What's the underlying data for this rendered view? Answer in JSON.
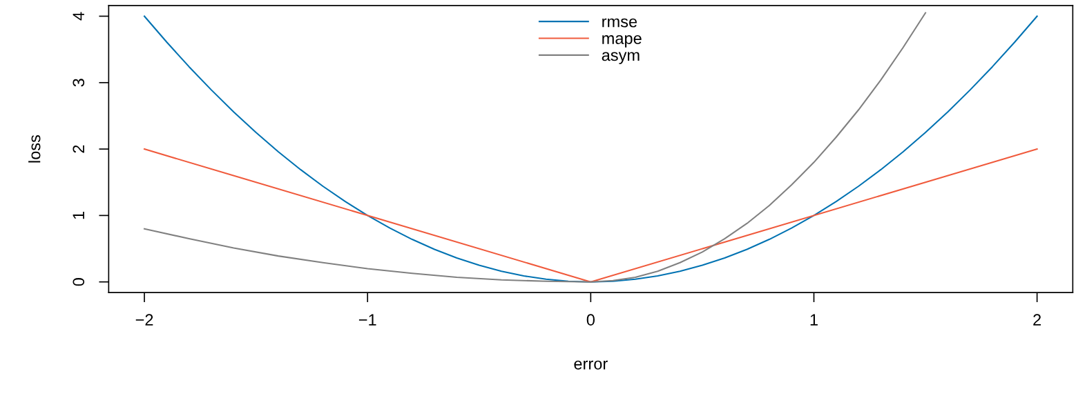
{
  "chart_data": {
    "type": "line",
    "xlabel": "error",
    "ylabel": "loss",
    "xlim": [
      -2.16,
      2.16
    ],
    "ylim": [
      -0.16,
      4.16
    ],
    "xticks": [
      {
        "value": -2,
        "label": "−2"
      },
      {
        "value": -1,
        "label": "−1"
      },
      0,
      1,
      2
    ],
    "yticks": [
      0,
      1,
      2,
      3,
      4
    ],
    "legend": "top",
    "grid": false,
    "series": [
      {
        "name": "rmse",
        "color": "#0072b2",
        "x": [
          -2,
          -1.9,
          -1.8,
          -1.7,
          -1.6,
          -1.5,
          -1.4,
          -1.3,
          -1.2,
          -1.1,
          -1,
          -0.9,
          -0.8,
          -0.7,
          -0.6,
          -0.5,
          -0.4,
          -0.3,
          -0.2,
          -0.1,
          0,
          0.1,
          0.2,
          0.3,
          0.4,
          0.5,
          0.6,
          0.7,
          0.8,
          0.9,
          1,
          1.1,
          1.2,
          1.3,
          1.4,
          1.5,
          1.6,
          1.7,
          1.8,
          1.9,
          2
        ],
        "values": [
          4,
          3.61,
          3.24,
          2.89,
          2.56,
          2.25,
          1.96,
          1.69,
          1.44,
          1.21,
          1,
          0.81,
          0.64,
          0.49,
          0.36,
          0.25,
          0.16,
          0.09,
          0.04,
          0.01,
          0,
          0.01,
          0.04,
          0.09,
          0.16,
          0.25,
          0.36,
          0.49,
          0.64,
          0.81,
          1,
          1.21,
          1.44,
          1.69,
          1.96,
          2.25,
          2.56,
          2.89,
          3.24,
          3.61,
          4
        ]
      },
      {
        "name": "mape",
        "color": "#f05a3c",
        "x": [
          -2,
          0,
          2
        ],
        "values": [
          2,
          0,
          2
        ]
      },
      {
        "name": "asym",
        "color": "#808080",
        "x": [
          -2,
          -1.8,
          -1.6,
          -1.4,
          -1.2,
          -1,
          -0.8,
          -0.6,
          -0.4,
          -0.2,
          0,
          0.1,
          0.2,
          0.3,
          0.4,
          0.5,
          0.6,
          0.7,
          0.8,
          0.9,
          1,
          1.1,
          1.2,
          1.3,
          1.4,
          1.5
        ],
        "values": [
          0.8,
          0.65,
          0.51,
          0.39,
          0.29,
          0.2,
          0.13,
          0.07,
          0.03,
          0.01,
          0,
          0.02,
          0.07,
          0.16,
          0.29,
          0.45,
          0.65,
          0.88,
          1.15,
          1.46,
          1.8,
          2.18,
          2.59,
          3.04,
          3.53,
          4.05
        ]
      }
    ]
  }
}
